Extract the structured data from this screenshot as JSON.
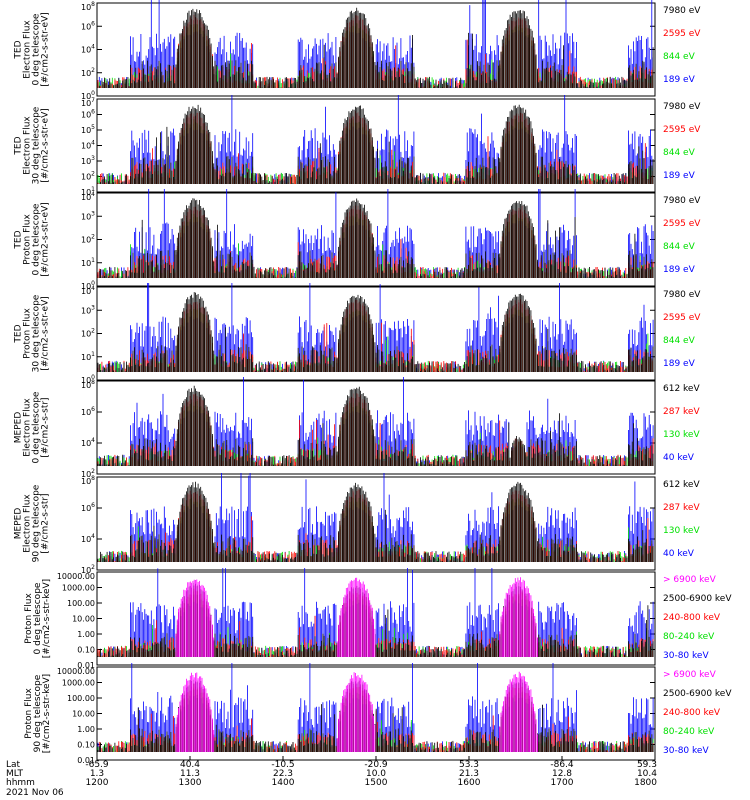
{
  "date_label": "2021 Nov 06",
  "x_axis": {
    "row_labels": [
      "Lat",
      "MLT",
      "hhmm"
    ],
    "ticks": [
      {
        "lat": "-65.9",
        "mlt": "1.3",
        "hhmm": "1200"
      },
      {
        "lat": "40.4",
        "mlt": "11.3",
        "hhmm": "1300"
      },
      {
        "lat": "-10.5",
        "mlt": "22.3",
        "hhmm": "1400"
      },
      {
        "lat": "-20.9",
        "mlt": "10.0",
        "hhmm": "1500"
      },
      {
        "lat": "53.3",
        "mlt": "21.3",
        "hhmm": "1600"
      },
      {
        "lat": "-86.4",
        "mlt": "12.8",
        "hhmm": "1700"
      },
      {
        "lat": "59.3",
        "mlt": "10.4",
        "hhmm": "1800"
      }
    ]
  },
  "colors": {
    "black": "#000000",
    "red": "#ff0000",
    "green": "#00e000",
    "blue": "#0000ff",
    "magenta": "#ff00ff"
  },
  "chart_data": [
    {
      "type": "line",
      "ylabel": [
        "TED",
        "Electron Flux",
        "0 deg telescope",
        "[#/cm2-s-str-eV]"
      ],
      "yscale": "log",
      "ytick_labels": [
        "10^0",
        "10^2",
        "10^4",
        "10^6",
        "10^8"
      ],
      "series": [
        {
          "name": "7980 eV",
          "color": "#000000"
        },
        {
          "name": "2595 eV",
          "color": "#ff0000"
        },
        {
          "name": "844 eV",
          "color": "#00e000"
        },
        {
          "name": "189 eV",
          "color": "#0000ff"
        }
      ]
    },
    {
      "type": "line",
      "ylabel": [
        "TED",
        "Electron Flux",
        "30 deg telescope",
        "[#/cm2-s-str-eV]"
      ],
      "yscale": "log",
      "ytick_labels": [
        "10^1",
        "10^2",
        "10^3",
        "10^4",
        "10^5",
        "10^6",
        "10^7"
      ],
      "series": [
        {
          "name": "7980 eV",
          "color": "#000000"
        },
        {
          "name": "2595 eV",
          "color": "#ff0000"
        },
        {
          "name": "844 eV",
          "color": "#00e000"
        },
        {
          "name": "189 eV",
          "color": "#0000ff"
        }
      ]
    },
    {
      "type": "line",
      "ylabel": [
        "TED",
        "Proton Flux",
        "0 deg telescope",
        "[#/cm2-s-str-eV]"
      ],
      "yscale": "log",
      "ytick_labels": [
        "10^0",
        "10^1",
        "10^2",
        "10^3",
        "10^4"
      ],
      "series": [
        {
          "name": "7980 eV",
          "color": "#000000"
        },
        {
          "name": "2595 eV",
          "color": "#ff0000"
        },
        {
          "name": "844 eV",
          "color": "#00e000"
        },
        {
          "name": "189 eV",
          "color": "#0000ff"
        }
      ]
    },
    {
      "type": "line",
      "ylabel": [
        "TED",
        "Proton Flux",
        "30 deg telescope",
        "[#/cm2-s-str-eV]"
      ],
      "yscale": "log",
      "ytick_labels": [
        "10^0",
        "10^1",
        "10^2",
        "10^3",
        "10^4"
      ],
      "series": [
        {
          "name": "7980 eV",
          "color": "#000000"
        },
        {
          "name": "2595 eV",
          "color": "#ff0000"
        },
        {
          "name": "844 eV",
          "color": "#00e000"
        },
        {
          "name": "189 eV",
          "color": "#0000ff"
        }
      ]
    },
    {
      "type": "line",
      "ylabel": [
        "MEPED",
        "Electron Flux",
        "0 deg telescope",
        "[#/cm2-s-str]"
      ],
      "yscale": "log",
      "ytick_labels": [
        "10^2",
        "10^4",
        "10^6",
        "10^8"
      ],
      "series": [
        {
          "name": "612 keV",
          "color": "#000000"
        },
        {
          "name": "287 keV",
          "color": "#ff0000"
        },
        {
          "name": "130 keV",
          "color": "#00e000"
        },
        {
          "name": "40 keV",
          "color": "#0000ff"
        }
      ]
    },
    {
      "type": "line",
      "ylabel": [
        "MEPED",
        "Electron Flux",
        "90 deg telescope",
        "[#/cm2-s-str]"
      ],
      "yscale": "log",
      "ytick_labels": [
        "10^2",
        "10^4",
        "10^6",
        "10^8"
      ],
      "series": [
        {
          "name": "612 keV",
          "color": "#000000"
        },
        {
          "name": "287 keV",
          "color": "#ff0000"
        },
        {
          "name": "130 keV",
          "color": "#00e000"
        },
        {
          "name": "40 keV",
          "color": "#0000ff"
        }
      ]
    },
    {
      "type": "line",
      "ylabel": [
        "Proton Flux",
        "0 deg telescope",
        "[#/cm2-s-str-keV]"
      ],
      "yscale": "log",
      "ytick_labels": [
        "0.01",
        "0.10",
        "1.00",
        "10.00",
        "100.00",
        "1000.00",
        "10000.00"
      ],
      "series": [
        {
          "name": "> 6900 keV",
          "color": "#ff00ff"
        },
        {
          "name": "2500-6900 keV",
          "color": "#000000"
        },
        {
          "name": "240-800 keV",
          "color": "#ff0000"
        },
        {
          "name": "80-240 keV",
          "color": "#00e000"
        },
        {
          "name": "30-80 keV",
          "color": "#0000ff"
        }
      ]
    },
    {
      "type": "line",
      "ylabel": [
        "Proton Flux",
        "90 deg telescope",
        "[#/cm2-s-str-keV]"
      ],
      "yscale": "log",
      "ytick_labels": [
        "0.01",
        "0.10",
        "1.00",
        "10.00",
        "100.00",
        "1000.00",
        "10000.00"
      ],
      "series": [
        {
          "name": "> 6900 keV",
          "color": "#ff00ff"
        },
        {
          "name": "2500-6900 keV",
          "color": "#000000"
        },
        {
          "name": "240-800 keV",
          "color": "#ff0000"
        },
        {
          "name": "80-240 keV",
          "color": "#00e000"
        },
        {
          "name": "30-80 keV",
          "color": "#0000ff"
        }
      ]
    }
  ]
}
